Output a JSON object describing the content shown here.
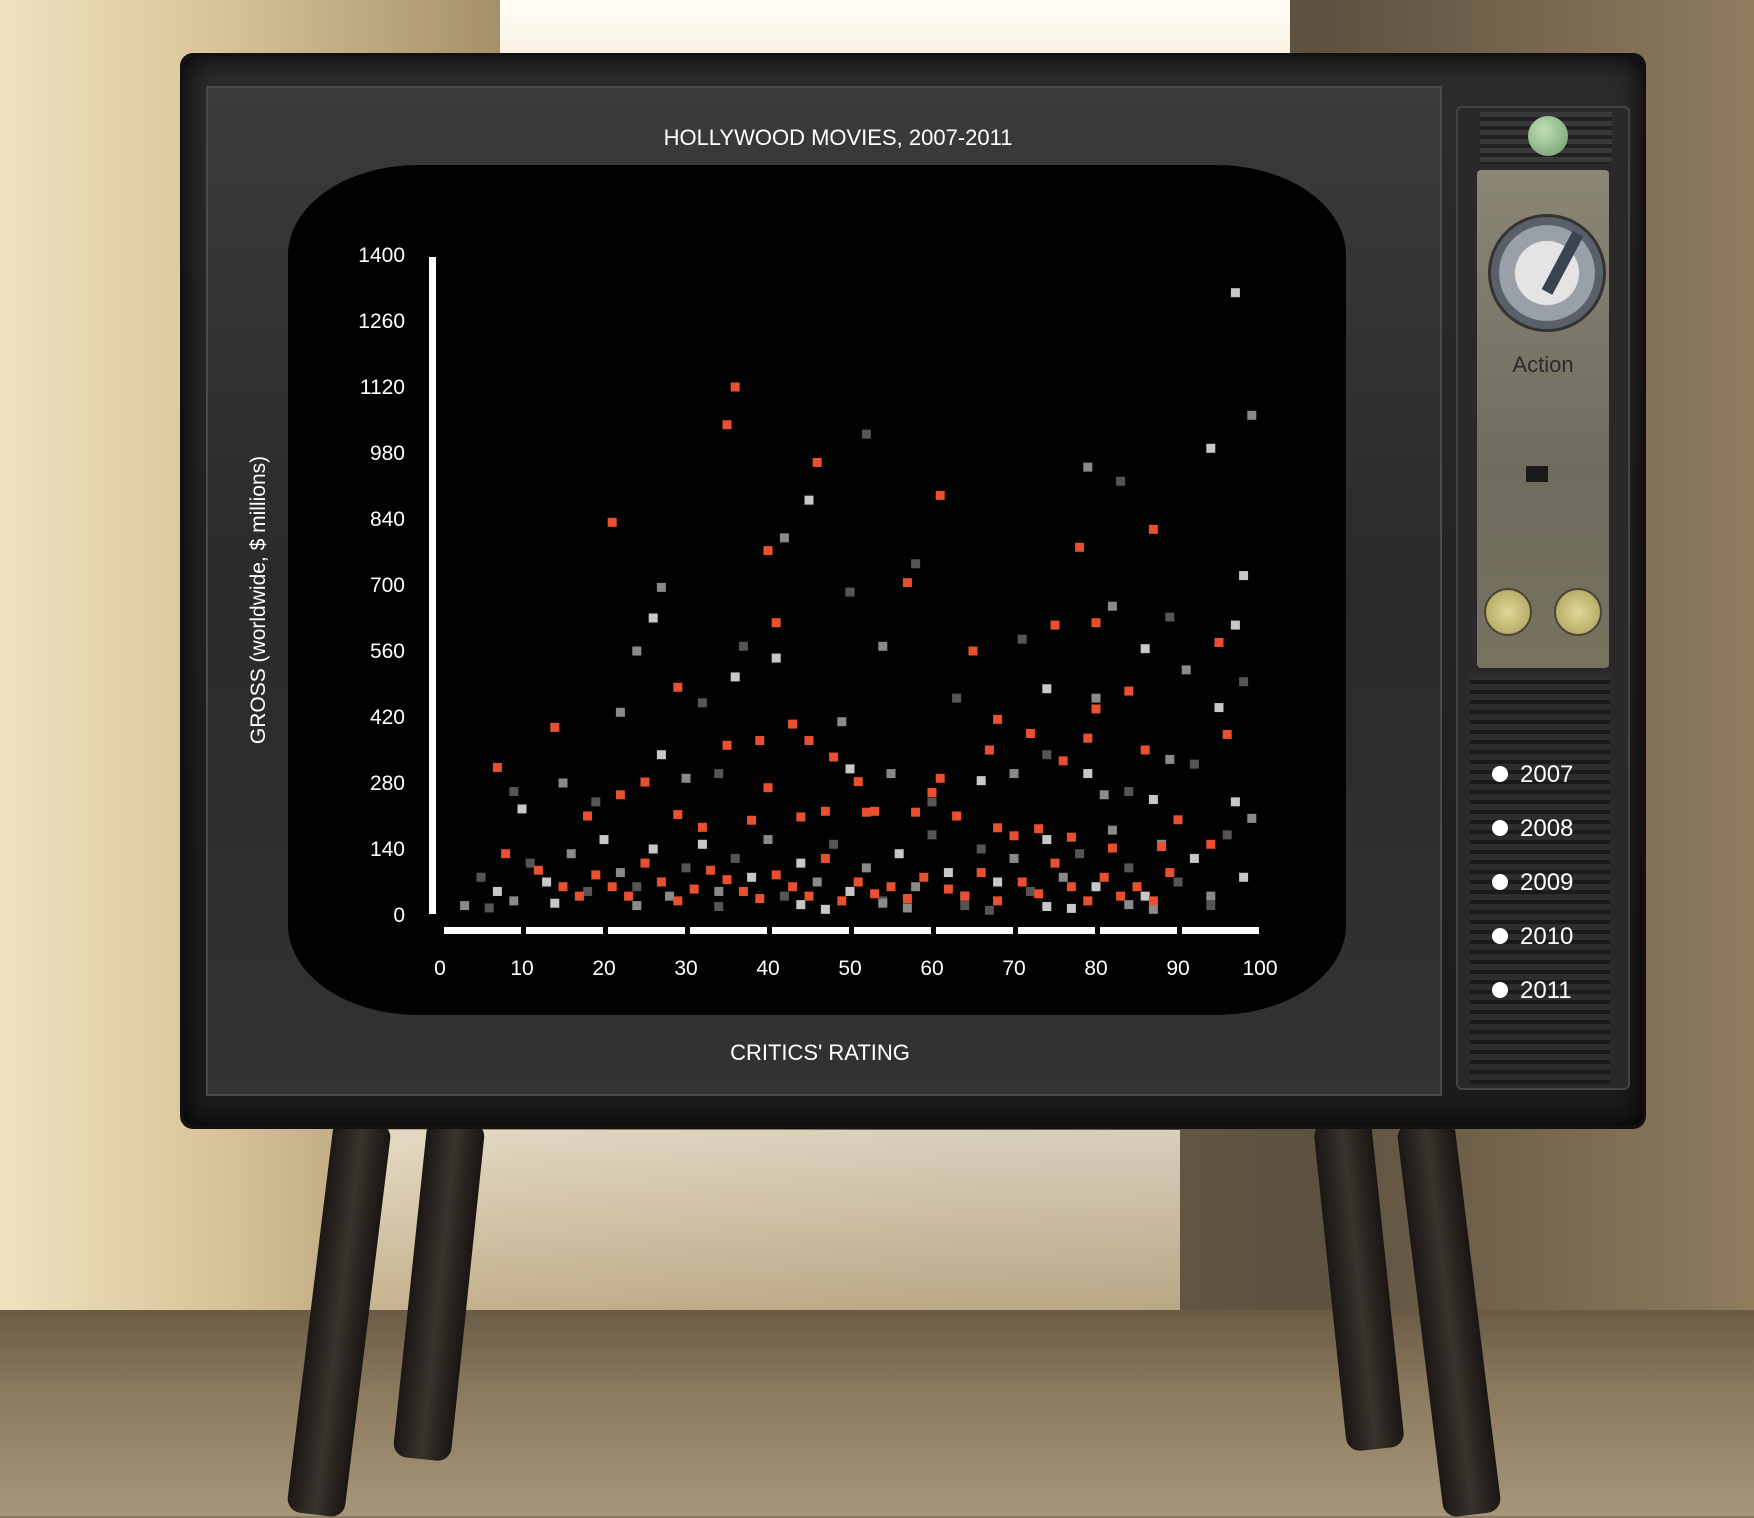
{
  "chart_data": {
    "type": "scatter",
    "title": "HOLLYWOOD MOVIES, 2007-2011",
    "xlabel": "CRITICS' RATING",
    "ylabel": "GROSS (worldwide, $ millions)",
    "xlim": [
      0,
      100
    ],
    "ylim": [
      0,
      1400
    ],
    "x_ticks": [
      "0",
      "10",
      "20",
      "30",
      "40",
      "50",
      "60",
      "70",
      "80",
      "90",
      "100"
    ],
    "y_ticks": [
      "0",
      "140",
      "280",
      "420",
      "560",
      "700",
      "840",
      "980",
      "1120",
      "1260",
      "1400"
    ],
    "grid": false,
    "colors": {
      "highlight": "#e8502f",
      "other_light": "#c8c8c8",
      "other_mid": "#8a8a8a",
      "other_dark": "#555555"
    },
    "series": [
      {
        "role": "highlighted (selected genre)",
        "color": "#e8502f",
        "points": [
          [
            36,
            1120
          ],
          [
            35,
            1040
          ],
          [
            46,
            960
          ],
          [
            21,
            833
          ],
          [
            40,
            773
          ],
          [
            61,
            890
          ],
          [
            87,
            818
          ],
          [
            78,
            780
          ],
          [
            57,
            705
          ],
          [
            41,
            620
          ],
          [
            75,
            615
          ],
          [
            80,
            620
          ],
          [
            95,
            578
          ],
          [
            65,
            560
          ],
          [
            29,
            483
          ],
          [
            14,
            398
          ],
          [
            7,
            313
          ],
          [
            35,
            360
          ],
          [
            39,
            370
          ],
          [
            45,
            370
          ],
          [
            43,
            405
          ],
          [
            48,
            335
          ],
          [
            51,
            283
          ],
          [
            52,
            218
          ],
          [
            61,
            290
          ],
          [
            67,
            350
          ],
          [
            68,
            415
          ],
          [
            72,
            385
          ],
          [
            76,
            327
          ],
          [
            79,
            375
          ],
          [
            80,
            437
          ],
          [
            84,
            475
          ],
          [
            86,
            350
          ],
          [
            90,
            202
          ],
          [
            96,
            383
          ],
          [
            18,
            210
          ],
          [
            22,
            255
          ],
          [
            25,
            282
          ],
          [
            29,
            213
          ],
          [
            32,
            186
          ],
          [
            38,
            201
          ],
          [
            40,
            270
          ],
          [
            44,
            208
          ],
          [
            47,
            220
          ],
          [
            53,
            220
          ],
          [
            58,
            218
          ],
          [
            60,
            260
          ],
          [
            63,
            210
          ],
          [
            68,
            185
          ],
          [
            70,
            168
          ],
          [
            73,
            183
          ],
          [
            77,
            165
          ],
          [
            82,
            142
          ],
          [
            88,
            145
          ],
          [
            94,
            150
          ],
          [
            8,
            130
          ],
          [
            12,
            95
          ],
          [
            15,
            60
          ],
          [
            17,
            40
          ],
          [
            19,
            85
          ],
          [
            21,
            60
          ],
          [
            23,
            40
          ],
          [
            25,
            110
          ],
          [
            27,
            70
          ],
          [
            29,
            30
          ],
          [
            31,
            55
          ],
          [
            33,
            95
          ],
          [
            35,
            75
          ],
          [
            37,
            50
          ],
          [
            39,
            35
          ],
          [
            41,
            85
          ],
          [
            43,
            60
          ],
          [
            45,
            40
          ],
          [
            47,
            120
          ],
          [
            49,
            30
          ],
          [
            51,
            70
          ],
          [
            53,
            45
          ],
          [
            55,
            60
          ],
          [
            57,
            35
          ],
          [
            59,
            80
          ],
          [
            62,
            55
          ],
          [
            64,
            40
          ],
          [
            66,
            90
          ],
          [
            68,
            30
          ],
          [
            71,
            70
          ],
          [
            73,
            45
          ],
          [
            75,
            110
          ],
          [
            77,
            60
          ],
          [
            79,
            30
          ],
          [
            81,
            80
          ],
          [
            83,
            40
          ],
          [
            85,
            60
          ],
          [
            87,
            30
          ],
          [
            89,
            90
          ]
        ]
      },
      {
        "role": "other movies",
        "color": "#b0b0b0",
        "points": [
          [
            97,
            1320
          ],
          [
            99,
            1060
          ],
          [
            52,
            1020
          ],
          [
            94,
            990
          ],
          [
            79,
            950
          ],
          [
            83,
            920
          ],
          [
            45,
            880
          ],
          [
            42,
            800
          ],
          [
            58,
            745
          ],
          [
            98,
            720
          ],
          [
            27,
            695
          ],
          [
            50,
            685
          ],
          [
            26,
            630
          ],
          [
            82,
            655
          ],
          [
            89,
            632
          ],
          [
            97,
            615
          ],
          [
            24,
            560
          ],
          [
            37,
            570
          ],
          [
            41,
            545
          ],
          [
            54,
            570
          ],
          [
            71,
            585
          ],
          [
            86,
            565
          ],
          [
            91,
            520
          ],
          [
            98,
            495
          ],
          [
            95,
            440
          ],
          [
            22,
            430
          ],
          [
            32,
            450
          ],
          [
            36,
            505
          ],
          [
            49,
            410
          ],
          [
            63,
            460
          ],
          [
            74,
            480
          ],
          [
            80,
            460
          ],
          [
            9,
            262
          ],
          [
            10,
            225
          ],
          [
            15,
            280
          ],
          [
            19,
            240
          ],
          [
            27,
            340
          ],
          [
            30,
            290
          ],
          [
            34,
            300
          ],
          [
            50,
            310
          ],
          [
            55,
            300
          ],
          [
            60,
            240
          ],
          [
            66,
            285
          ],
          [
            70,
            300
          ],
          [
            74,
            340
          ],
          [
            79,
            300
          ],
          [
            81,
            255
          ],
          [
            84,
            262
          ],
          [
            87,
            245
          ],
          [
            89,
            330
          ],
          [
            92,
            320
          ],
          [
            97,
            240
          ],
          [
            99,
            205
          ],
          [
            5,
            80
          ],
          [
            7,
            50
          ],
          [
            9,
            30
          ],
          [
            11,
            110
          ],
          [
            13,
            70
          ],
          [
            16,
            130
          ],
          [
            18,
            50
          ],
          [
            20,
            160
          ],
          [
            22,
            90
          ],
          [
            24,
            60
          ],
          [
            26,
            140
          ],
          [
            28,
            40
          ],
          [
            30,
            100
          ],
          [
            32,
            150
          ],
          [
            34,
            50
          ],
          [
            36,
            120
          ],
          [
            38,
            80
          ],
          [
            40,
            160
          ],
          [
            42,
            40
          ],
          [
            44,
            110
          ],
          [
            46,
            70
          ],
          [
            48,
            150
          ],
          [
            50,
            50
          ],
          [
            52,
            100
          ],
          [
            54,
            30
          ],
          [
            56,
            130
          ],
          [
            58,
            60
          ],
          [
            60,
            170
          ],
          [
            62,
            90
          ],
          [
            64,
            40
          ],
          [
            66,
            140
          ],
          [
            68,
            70
          ],
          [
            70,
            120
          ],
          [
            72,
            50
          ],
          [
            74,
            160
          ],
          [
            76,
            80
          ],
          [
            78,
            130
          ],
          [
            80,
            60
          ],
          [
            82,
            180
          ],
          [
            84,
            100
          ],
          [
            86,
            40
          ],
          [
            88,
            150
          ],
          [
            90,
            70
          ],
          [
            92,
            120
          ],
          [
            94,
            40
          ],
          [
            96,
            170
          ],
          [
            98,
            80
          ],
          [
            3,
            20
          ],
          [
            6,
            15
          ],
          [
            14,
            25
          ],
          [
            24,
            20
          ],
          [
            34,
            18
          ],
          [
            44,
            22
          ],
          [
            54,
            25
          ],
          [
            64,
            20
          ],
          [
            74,
            18
          ],
          [
            84,
            22
          ],
          [
            94,
            20
          ],
          [
            47,
            12
          ],
          [
            57,
            15
          ],
          [
            67,
            10
          ],
          [
            77,
            14
          ],
          [
            87,
            12
          ]
        ]
      }
    ],
    "legend": [
      "2007",
      "2008",
      "2009",
      "2010",
      "2011"
    ],
    "genre_label": "Action"
  }
}
